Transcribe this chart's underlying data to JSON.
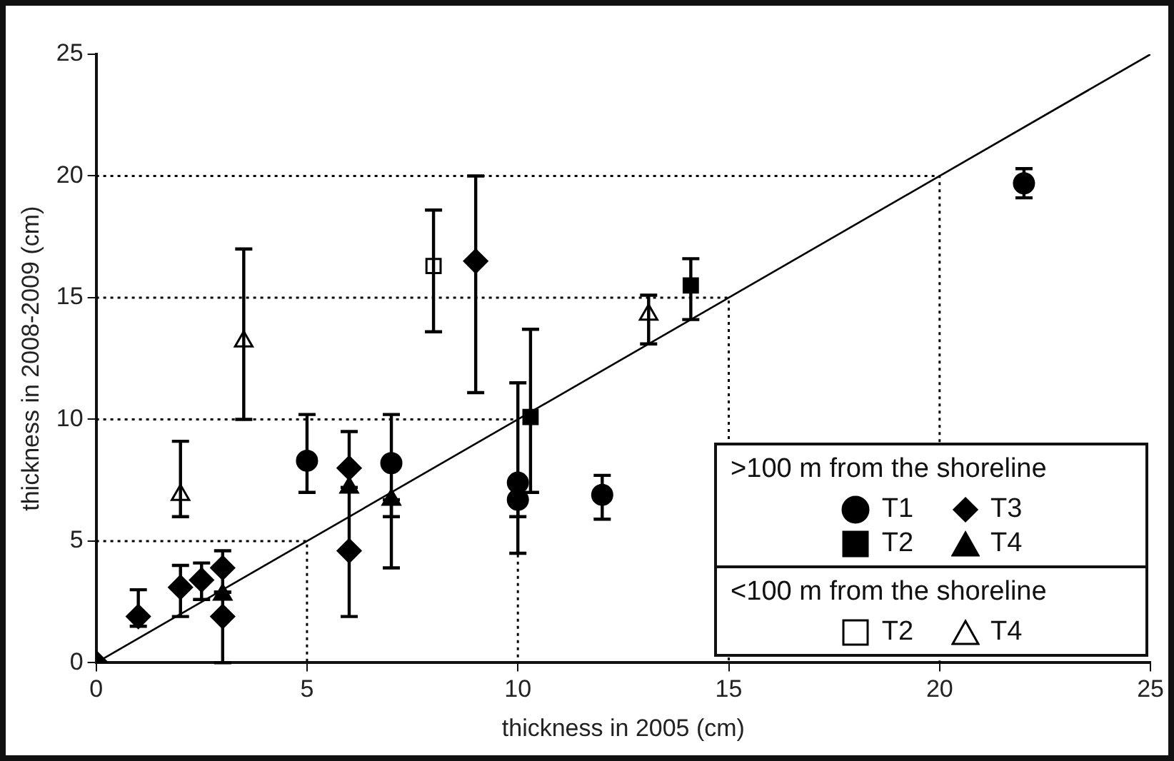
{
  "chart_data": {
    "type": "scatter",
    "xlabel": "thickness in 2005 (cm)",
    "ylabel": "thickness in 2008-2009 (cm)",
    "xlim": [
      0,
      25
    ],
    "ylim": [
      0,
      25
    ],
    "xticks": [
      0,
      5,
      10,
      15,
      20,
      25
    ],
    "yticks": [
      0,
      5,
      10,
      15,
      20,
      25
    ],
    "grid": false,
    "legend": "bottom right",
    "annotations": [
      ">100 m from the shoreline",
      "<100 m from the shoreline"
    ],
    "series": [
      {
        "name": "T1",
        "color": "#000000",
        "marker": "circle",
        "x": [
          5,
          7,
          10,
          10,
          12,
          22
        ],
        "values": [
          8.3,
          8.2,
          7.4,
          6.7,
          6.9,
          19.7
        ],
        "errors": [
          [
            7.0,
            10.2
          ],
          [
            6.0,
            10.2
          ],
          [
            6.0,
            11.5
          ],
          [
            4.5,
            6.7
          ],
          [
            5.9,
            7.7
          ],
          [
            19.1,
            20.3
          ]
        ]
      },
      {
        "name": "T2",
        "color": "#000000",
        "marker": "square",
        "x": [
          10.3,
          14.1
        ],
        "values": [
          10.1,
          15.5
        ],
        "errors": [
          [
            7.0,
            13.7
          ],
          [
            14.1,
            16.6
          ]
        ]
      },
      {
        "name": "T3",
        "color": "#000000",
        "marker": "diamond",
        "x": [
          0,
          1,
          2,
          2.5,
          3,
          3,
          6,
          6,
          9
        ],
        "values": [
          0,
          1.9,
          3.1,
          3.4,
          3.9,
          1.9,
          8.0,
          4.6,
          16.5
        ],
        "errors": [
          null,
          [
            1.5,
            3.0
          ],
          [
            1.9,
            4.0
          ],
          [
            2.6,
            4.1
          ],
          [
            2.9,
            4.6
          ],
          [
            0,
            2.9
          ],
          [
            7.2,
            9.5
          ],
          [
            1.9,
            7.2
          ],
          [
            11.1,
            20.0
          ]
        ]
      },
      {
        "name": "T4",
        "color": "#000000",
        "marker": "triangle",
        "x": [
          3,
          6,
          7
        ],
        "values": [
          2.8,
          7.2,
          6.7
        ],
        "errors": [
          null,
          null,
          [
            3.9,
            6.7
          ]
        ]
      },
      {
        "name": "T2",
        "color": "#ffffff",
        "marker": "square",
        "x": [
          8
        ],
        "values": [
          16.3
        ],
        "errors": [
          [
            13.6,
            18.6
          ]
        ]
      },
      {
        "name": "T4",
        "color": "#ffffff",
        "marker": "triangle",
        "x": [
          2,
          3.5,
          13.1
        ],
        "values": [
          6.9,
          13.2,
          14.3
        ],
        "errors": [
          [
            6.0,
            9.1
          ],
          [
            10.0,
            17.0
          ],
          [
            13.1,
            15.1
          ]
        ]
      },
      {
        "type": "line",
        "color": "#000000",
        "marker": "none",
        "line_style": "solid",
        "x": [
          0,
          25
        ],
        "values": [
          0,
          25
        ]
      },
      {
        "type": "line",
        "color": "#000000",
        "marker": "none",
        "line_style": "dotted",
        "x": [
          0,
          5,
          5
        ],
        "values": [
          5,
          5,
          0
        ]
      },
      {
        "type": "line",
        "color": "#000000",
        "marker": "none",
        "line_style": "dotted",
        "x": [
          0,
          10,
          10
        ],
        "values": [
          10,
          10,
          0
        ]
      },
      {
        "type": "line",
        "color": "#000000",
        "marker": "none",
        "line_style": "dotted",
        "x": [
          0,
          15,
          15
        ],
        "values": [
          15,
          15,
          0
        ]
      },
      {
        "type": "line",
        "color": "#000000",
        "marker": "none",
        "line_style": "dotted",
        "x": [
          0,
          20,
          20
        ],
        "values": [
          20,
          20,
          0
        ]
      }
    ]
  }
}
